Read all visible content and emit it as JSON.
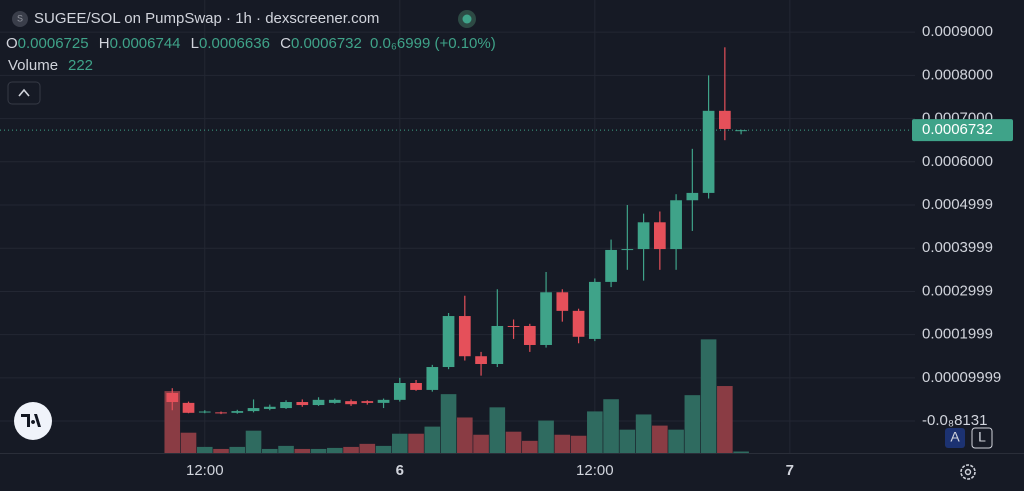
{
  "chart_data": {
    "type": "candlestick",
    "title": "SUGEE/SOL on PumpSwap · 1h · dexscreener.com",
    "ohlc_letters": [
      "O",
      "H",
      "L",
      "C"
    ],
    "change_label": "0.0₆6999 (+0.10%)",
    "volume_label": "Volume",
    "buttons": [
      "A",
      "L"
    ],
    "up_color": "#3fa389",
    "down_color": "#e5505a",
    "volume_up_color": "#2f6b60",
    "volume_down_color": "#8a3c44",
    "x": [
      10,
      11,
      12,
      13,
      14,
      15,
      16,
      17,
      18,
      19,
      20,
      21,
      22,
      23,
      24,
      25,
      26,
      27,
      28,
      29,
      30,
      31,
      32,
      33,
      34,
      35,
      36,
      37,
      38,
      39,
      40,
      41,
      42,
      43,
      44,
      45
    ],
    "open": [
      6.5e-05,
      4.2e-05,
      2e-05,
      2e-05,
      1.9e-05,
      2.3e-05,
      2.8e-05,
      3e-05,
      4.4e-05,
      3.7e-05,
      4.2e-05,
      4.6e-05,
      4.6e-05,
      4.2e-05,
      4.9e-05,
      8.8e-05,
      7.2e-05,
      0.000125,
      0.000243,
      0.00015,
      0.000132,
      0.00022,
      0.00022,
      0.000176,
      0.000298,
      0.000255,
      0.00019,
      0.000322,
      0.000396,
      0.000398,
      0.00046,
      0.000398,
      0.000511,
      0.000528,
      0.000718,
      0.0006725
    ],
    "high": [
      7.6e-05,
      4.5e-05,
      2.5e-05,
      2.2e-05,
      2.6e-05,
      5e-05,
      3.8e-05,
      4.8e-05,
      5e-05,
      5.5e-05,
      5.2e-05,
      5e-05,
      4.8e-05,
      5.2e-05,
      0.0001,
      9.5e-05,
      0.00013,
      0.00025,
      0.00029,
      0.00016,
      0.000305,
      0.000235,
      0.000225,
      0.000345,
      0.000305,
      0.00026,
      0.00033,
      0.00042,
      0.0005,
      0.00048,
      0.000485,
      0.000525,
      0.00063,
      0.0008,
      0.000865,
      0.0006744
    ],
    "low": [
      2.5e-05,
      1.8e-05,
      1.8e-05,
      1.6e-05,
      1.7e-05,
      2e-05,
      2.5e-05,
      2.8e-05,
      3.3e-05,
      3.5e-05,
      4e-05,
      3.5e-05,
      3.8e-05,
      3e-05,
      4.5e-05,
      7e-05,
      6.8e-05,
      0.00012,
      0.00014,
      0.000105,
      0.000125,
      0.00019,
      0.00016,
      0.00017,
      0.00023,
      0.00018,
      0.000185,
      0.00031,
      0.00035,
      0.000325,
      0.00035,
      0.00035,
      0.00044,
      0.000515,
      0.00065,
      0.0006636
    ],
    "close": [
      4.4e-05,
      1.9e-05,
      2.2e-05,
      1.8e-05,
      2.3e-05,
      3e-05,
      3.3e-05,
      4.4e-05,
      3.7e-05,
      4.9e-05,
      4.9e-05,
      3.9e-05,
      4.2e-05,
      4.9e-05,
      8.8e-05,
      7.2e-05,
      0.000125,
      0.000243,
      0.00015,
      0.000132,
      0.00022,
      0.000218,
      0.000176,
      0.000298,
      0.000255,
      0.000195,
      0.000322,
      0.000396,
      0.000398,
      0.00046,
      0.000398,
      0.000511,
      0.000528,
      0.000718,
      0.000676,
      0.0006732
    ],
    "volume": [
      9150,
      3000,
      900,
      600,
      900,
      3300,
      600,
      1050,
      600,
      600,
      750,
      900,
      1350,
      1050,
      2850,
      2850,
      3900,
      8700,
      5250,
      2700,
      6750,
      3150,
      1800,
      4800,
      2700,
      2550,
      6150,
      7950,
      3450,
      5700,
      4050,
      3450,
      8550,
      16800,
      9900,
      222
    ],
    "volume_lim": [
      0,
      17000
    ],
    "xlim": [
      -0.6,
      55.7
    ],
    "xticks": [
      {
        "value": 12,
        "label": "12:00"
      },
      {
        "value": 24,
        "label": "6"
      },
      {
        "value": 36,
        "label": "12:00"
      },
      {
        "value": 48,
        "label": "7"
      }
    ],
    "ylim": [
      -7.4e-05,
      0.0009745
    ],
    "yticks": [
      {
        "value": 0.0009,
        "label": "0.0009000"
      },
      {
        "value": 0.0008,
        "label": "0.0008000"
      },
      {
        "value": 0.0007,
        "label": "0.0007000"
      },
      {
        "value": 0.0006,
        "label": "0.0006000"
      },
      {
        "value": 0.0004999,
        "label": "0.0004999"
      },
      {
        "value": 0.0003999,
        "label": "0.0003999"
      },
      {
        "value": 0.0002999,
        "label": "0.0002999"
      },
      {
        "value": 0.0001999,
        "label": "0.0001999"
      },
      {
        "value": 9.999e-05,
        "label": "0.00009999"
      },
      {
        "value": -8.131e-09,
        "label": "-0.0₈8131"
      }
    ],
    "grid": true
  }
}
